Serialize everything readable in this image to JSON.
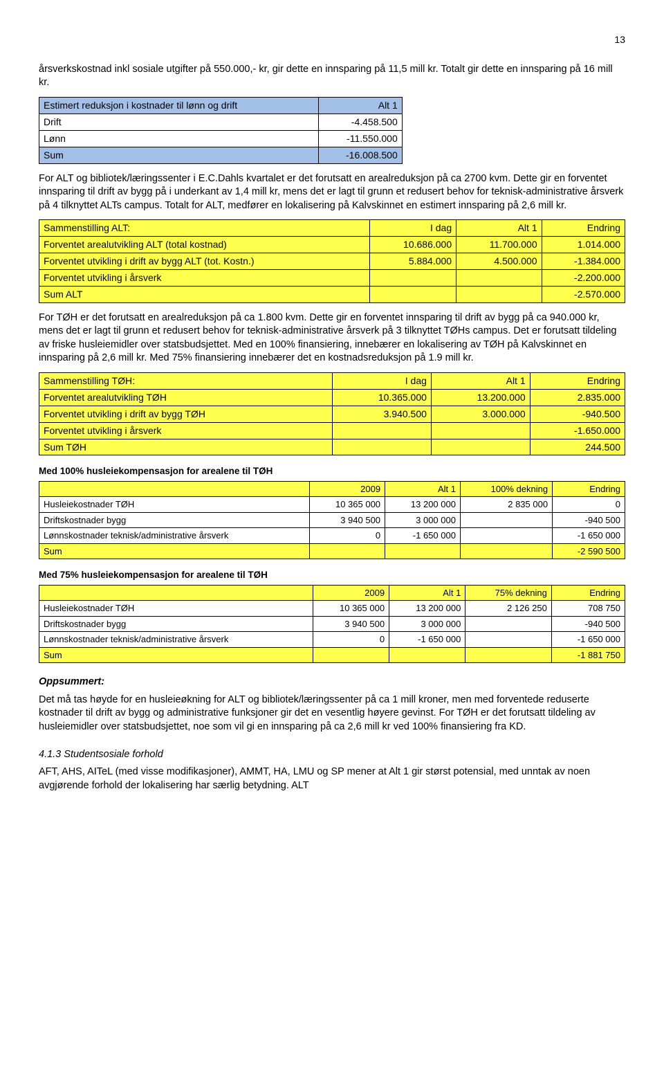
{
  "page_number": "13",
  "intro": "årsverkskostnad inkl sosiale utgifter på 550.000,- kr, gir dette en innsparing på 11,5 mill kr. Totalt gir dette en innsparing på 16 mill kr.",
  "table1": {
    "header": [
      "Estimert reduksjon i kostnader til lønn og drift",
      "Alt 1"
    ],
    "rows": [
      [
        "Drift",
        "-4.458.500"
      ],
      [
        "Lønn",
        "-11.550.000"
      ]
    ],
    "sum": [
      "Sum",
      "-16.008.500"
    ]
  },
  "para2": "For ALT og bibliotek/læringssenter i E.C.Dahls kvartalet er det forutsatt en arealreduksjon på ca 2700 kvm. Dette gir en forventet innsparing til drift av bygg på i underkant av 1,4 mill kr, mens det er lagt til grunn et redusert behov for teknisk-administrative årsverk på 4 tilknyttet ALTs campus. Totalt for ALT, medfører en lokalisering på Kalvskinnet en estimert innsparing på 2,6 mill kr.",
  "table2": {
    "header": [
      "Sammenstilling ALT:",
      "I dag",
      "Alt 1",
      "Endring"
    ],
    "rows": [
      [
        "Forventet arealutvikling ALT (total kostnad)",
        "10.686.000",
        "11.700.000",
        "1.014.000"
      ],
      [
        "Forventet utvikling i drift  av bygg ALT (tot. Kostn.)",
        "5.884.000",
        "4.500.000",
        "-1.384.000"
      ],
      [
        "Forventet utvikling i årsverk",
        "",
        "",
        "-2.200.000"
      ]
    ],
    "sum": [
      "Sum ALT",
      "",
      "",
      "-2.570.000"
    ]
  },
  "para3": "For TØH er det forutsatt en arealreduksjon på ca 1.800 kvm. Dette gir en forventet innsparing til drift av bygg på ca 940.000 kr, mens det er lagt til grunn et redusert behov for teknisk-administrative årsverk på 3 tilknyttet TØHs campus. Det er forutsatt tildeling av friske husleiemidler over statsbudsjettet. Med en 100% finansiering, innebærer en lokalisering av TØH på Kalvskinnet en innsparing på 2,6 mill kr.  Med 75% finansiering innebærer det en kostnadsreduksjon på 1.9 mill kr.",
  "table3": {
    "header": [
      "Sammenstilling TØH:",
      "I dag",
      "Alt 1",
      "Endring"
    ],
    "rows": [
      [
        "Forventet arealutvikling TØH",
        "10.365.000",
        "13.200.000",
        "2.835.000"
      ],
      [
        "Forventet utvikling i drift  av bygg TØH",
        "3.940.500",
        "3.000.000",
        "-940.500"
      ],
      [
        "Forventet utvikling i årsverk",
        "",
        "",
        "-1.650.000"
      ]
    ],
    "sum": [
      "Sum TØH",
      "",
      "",
      "244.500"
    ]
  },
  "table4_title": "Med 100% husleiekompensasjon for arealene til TØH",
  "table4": {
    "header": [
      "",
      "2009",
      "Alt 1",
      "100% dekning",
      "Endring"
    ],
    "rows": [
      [
        "Husleiekostnader TØH",
        "10 365 000",
        "13 200 000",
        "2 835 000",
        "0"
      ],
      [
        "Driftskostnader bygg",
        "3 940 500",
        "3 000 000",
        "",
        "-940 500"
      ],
      [
        "Lønnskostnader teknisk/administrative årsverk",
        "0",
        "-1 650 000",
        "",
        "-1 650 000"
      ]
    ],
    "sum": [
      "Sum",
      "",
      "",
      "",
      "-2 590 500"
    ]
  },
  "table5_title": "Med 75% husleiekompensasjon for arealene til TØH",
  "table5": {
    "header": [
      "",
      "2009",
      "Alt 1",
      "75% dekning",
      "Endring"
    ],
    "rows": [
      [
        "Husleiekostnader TØH",
        "10 365 000",
        "13 200 000",
        "2 126 250",
        "708 750"
      ],
      [
        "Driftskostnader bygg",
        "3 940 500",
        "3 000 000",
        "",
        "-940 500"
      ],
      [
        "Lønnskostnader teknisk/administrative årsverk",
        "0",
        "-1 650 000",
        "",
        "-1 650 000"
      ]
    ],
    "sum": [
      "Sum",
      "",
      "",
      "",
      "-1 881 750"
    ]
  },
  "oppsummert_label": "Oppsummert:",
  "oppsummert_text": "Det må tas høyde for en husleieøkning for ALT og bibliotek/læringssenter på ca 1 mill kroner, men med forventede reduserte kostnader til drift av bygg og administrative funksjoner gir det en vesentlig høyere gevinst. For TØH er det forutsatt tildeling av husleiemidler over statsbudsjettet, noe som vil gi en innsparing på ca 2,6 mill kr ved 100% finansiering fra KD.",
  "subsection_num": "4.1.3    Studentsosiale forhold",
  "last_para": "AFT, AHS, AITeL (med visse modifikasjoner), AMMT, HA, LMU og SP mener at Alt 1 gir størst potensial, med unntak av noen avgjørende forhold der lokalisering har særlig betydning. ALT"
}
